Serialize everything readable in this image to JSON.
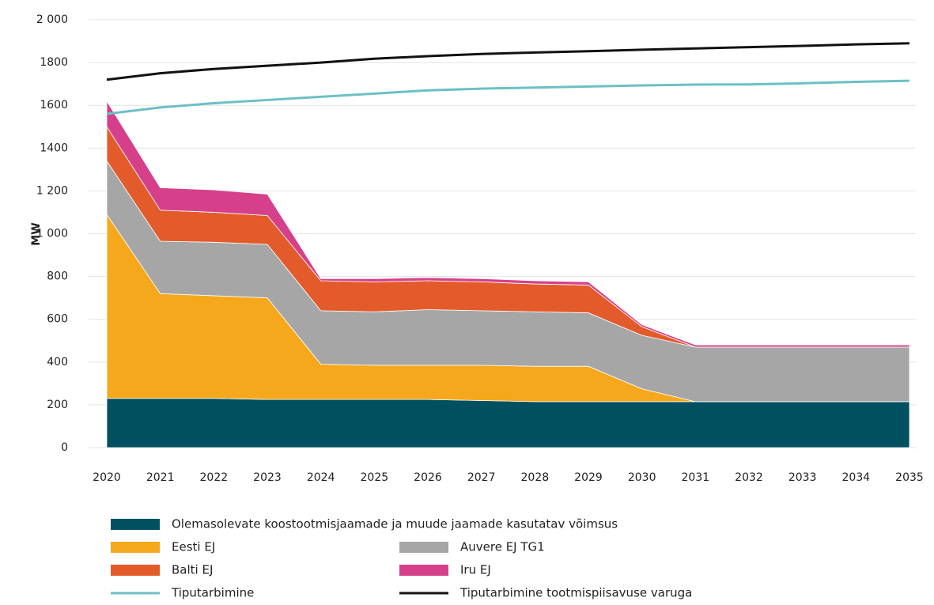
{
  "chart_data": {
    "type": "area",
    "ylabel": "MW",
    "categories": [
      "2020",
      "2021",
      "2022",
      "2023",
      "2024",
      "2025",
      "2026",
      "2027",
      "2028",
      "2029",
      "2030",
      "2031",
      "2032",
      "2033",
      "2034",
      "2035"
    ],
    "ylim": [
      0,
      2000
    ],
    "yticks": [
      0,
      200,
      400,
      600,
      800,
      {
        "value": 1000,
        "label": "1 000"
      },
      {
        "value": 1200,
        "label": "1 200"
      },
      1400,
      1600,
      1800,
      {
        "value": 2000,
        "label": "2 000"
      }
    ],
    "grid": true,
    "series": [
      {
        "name": "Olemasolevate koostootmisjaamade ja muude jaamade kasutatav võimsus",
        "style": "area",
        "color": "#00505f",
        "values": [
          230,
          230,
          230,
          225,
          225,
          225,
          225,
          220,
          215,
          215,
          215,
          215,
          215,
          215,
          215,
          215
        ]
      },
      {
        "name": "Eesti EJ",
        "style": "area",
        "color": "#f5a81c",
        "values": [
          860,
          490,
          480,
          475,
          165,
          160,
          160,
          165,
          165,
          165,
          60,
          0,
          0,
          0,
          0,
          0
        ]
      },
      {
        "name": "Auvere EJ TG1",
        "style": "area",
        "color": "#a6a6a6",
        "values": [
          250,
          245,
          250,
          250,
          250,
          250,
          260,
          255,
          255,
          250,
          250,
          255,
          255,
          255,
          255,
          255
        ]
      },
      {
        "name": "Balti EJ",
        "style": "area",
        "color": "#e35b2a",
        "values": [
          160,
          145,
          140,
          135,
          140,
          140,
          135,
          135,
          130,
          130,
          40,
          0,
          0,
          0,
          0,
          0
        ]
      },
      {
        "name": "Iru EJ",
        "style": "area",
        "color": "#d6408a",
        "values": [
          120,
          105,
          105,
          100,
          10,
          15,
          15,
          15,
          15,
          15,
          10,
          10,
          10,
          10,
          10,
          10
        ]
      },
      {
        "name": "Tiputarbimine",
        "style": "line",
        "color": "#6cc0c5",
        "values": [
          1560,
          1590,
          1610,
          1625,
          1640,
          1655,
          1670,
          1678,
          1683,
          1688,
          1693,
          1697,
          1698,
          1703,
          1710,
          1715
        ]
      },
      {
        "name": "Tiputarbimine tootmispiisavuse varuga",
        "style": "line",
        "color": "#111111",
        "values": [
          1720,
          1750,
          1770,
          1785,
          1800,
          1818,
          1830,
          1840,
          1847,
          1853,
          1860,
          1866,
          1872,
          1878,
          1885,
          1890
        ]
      }
    ]
  }
}
